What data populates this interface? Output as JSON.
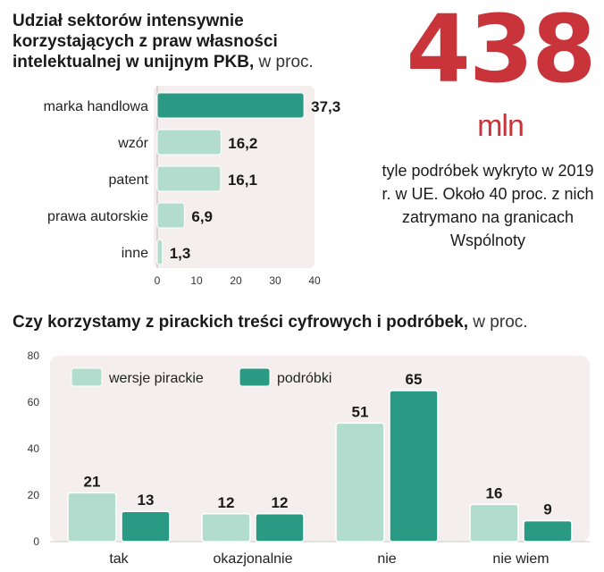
{
  "colors": {
    "accent_red": "#c9343a",
    "dark_teal": "#2a9a85",
    "light_teal": "#b2dccd",
    "panel_bg": "#f5eeee"
  },
  "top_chart": {
    "title": "Udział sektorów intensywnie korzystających z praw własności intelektualnej w unijnym PKB,",
    "title_unit": " w proc."
  },
  "highlight": {
    "number": "438",
    "unit": "mln",
    "caption": "tyle podróbek wykryto w 2019 r. w UE. Około 40 proc. z nich zatrymano na granicach Wspólnoty"
  },
  "bottom_chart": {
    "title": "Czy korzystamy z pirackich treści cyfrowych i podróbek,",
    "title_unit": " w proc."
  },
  "chart_data": [
    {
      "type": "bar",
      "orientation": "horizontal",
      "categories": [
        "marka handlowa",
        "wzór",
        "patent",
        "prawa autorskie",
        "inne"
      ],
      "values": [
        37.3,
        16.2,
        16.1,
        6.9,
        1.3
      ],
      "value_labels": [
        "37,3",
        "16,2",
        "16,1",
        "6,9",
        "1,3"
      ],
      "xlim": [
        0,
        40
      ],
      "xticks": [
        0,
        10,
        20,
        30,
        40
      ],
      "highlight_color": "#2a9a85",
      "bar_color": "#b2dccd"
    },
    {
      "type": "bar",
      "categories": [
        "tak",
        "okazjonalnie",
        "nie",
        "nie wiem"
      ],
      "series": [
        {
          "name": "wersje pirackie",
          "values": [
            21,
            12,
            51,
            16
          ],
          "color": "#b2dccd"
        },
        {
          "name": "podróbki",
          "values": [
            13,
            12,
            65,
            9
          ],
          "color": "#2a9a85"
        }
      ],
      "ylim": [
        0,
        80
      ],
      "yticks": [
        0,
        20,
        40,
        60,
        80
      ],
      "legend": "top-left"
    }
  ]
}
